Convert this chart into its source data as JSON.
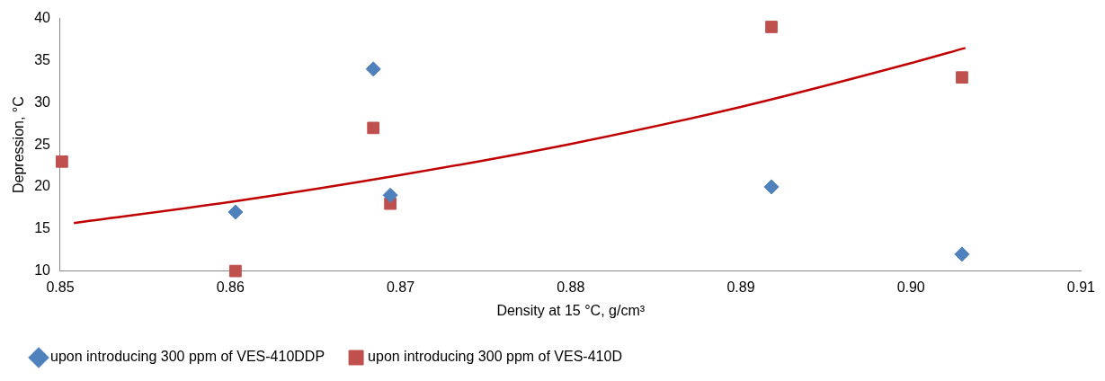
{
  "chart_data": {
    "type": "scatter",
    "xlabel": "Density at 15 °C, g/cm³",
    "ylabel": "Depression, °C",
    "xlim": [
      0.85,
      0.91
    ],
    "xticks": [
      {
        "value": 0.85,
        "label": "0.85"
      },
      {
        "value": 0.86,
        "label": "0.86"
      },
      {
        "value": 0.87,
        "label": "0.87"
      },
      {
        "value": 0.88,
        "label": "0.88"
      },
      {
        "value": 0.89,
        "label": "0.89"
      },
      {
        "value": 0.9,
        "label": "0.90"
      },
      {
        "value": 0.91,
        "label": "0.91"
      }
    ],
    "ylim": [
      10,
      40
    ],
    "yticks": [
      10,
      15,
      20,
      25,
      30,
      35,
      40
    ],
    "grid": false,
    "legend": "bottom",
    "series": [
      {
        "name": "upon introducing 300 ppm of VES-410DDP",
        "color": "#4f81bd",
        "marker": "diamond",
        "x": [
          0.8603,
          0.8684,
          0.8694,
          0.8918,
          0.903
        ],
        "values": [
          17,
          34,
          19,
          20,
          12
        ]
      },
      {
        "name": "upon introducing 300 ppm of VES-410D",
        "color": "#c0504d",
        "marker": "square",
        "x": [
          0.8501,
          0.8603,
          0.8684,
          0.8694,
          0.8918,
          0.903
        ],
        "values": [
          23,
          10,
          27,
          18,
          39,
          33
        ]
      },
      {
        "type": "line",
        "color": "#c00000",
        "marker": "none",
        "x": [
          0.8508,
          0.86,
          0.87,
          0.88,
          0.89,
          0.9,
          0.9032
        ],
        "values": [
          15.7,
          18.2,
          21.4,
          25.1,
          29.5,
          34.7,
          36.5
        ]
      }
    ]
  }
}
